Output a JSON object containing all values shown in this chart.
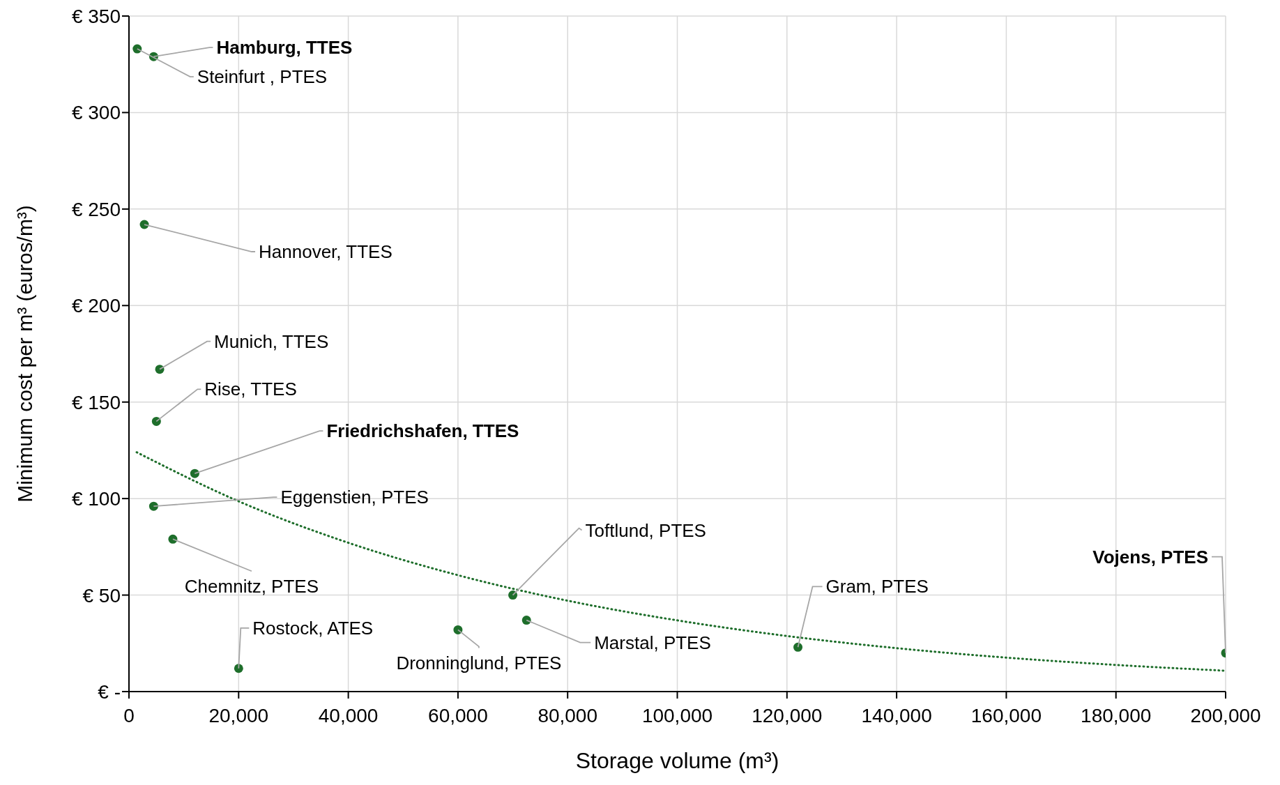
{
  "chart_data": {
    "type": "scatter",
    "xlabel": "Storage volume (m³)",
    "ylabel": "Minimum cost per m³ (euros/m³)",
    "xlim": [
      0,
      200000
    ],
    "xticks": [
      0,
      {
        "value": 20000,
        "label": "20,000"
      },
      {
        "value": 40000,
        "label": "40,000"
      },
      {
        "value": 60000,
        "label": "60,000"
      },
      {
        "value": 80000,
        "label": "80,000"
      },
      {
        "value": 100000,
        "label": "100,000"
      },
      {
        "value": 120000,
        "label": "120,000"
      },
      {
        "value": 140000,
        "label": "140,000"
      },
      {
        "value": 160000,
        "label": "160,000"
      },
      {
        "value": 180000,
        "label": "180,000"
      },
      {
        "value": 200000,
        "label": "200,000"
      }
    ],
    "ylim": [
      0,
      350
    ],
    "yticks": [
      {
        "value": 0,
        "label": "€ -"
      },
      {
        "value": 50,
        "label": "€ 50"
      },
      {
        "value": 100,
        "label": "€ 100"
      },
      {
        "value": 150,
        "label": "€ 150"
      },
      {
        "value": 200,
        "label": "€ 200"
      },
      {
        "value": 250,
        "label": "€ 250"
      },
      {
        "value": 300,
        "label": "€ 300"
      },
      {
        "value": 350,
        "label": "€ 350"
      }
    ],
    "grid": true,
    "marker": "circle",
    "series": [
      {
        "type": "scatter",
        "color": "#1e6e2b",
        "x": [
          4500,
          1500,
          2800,
          5600,
          5000,
          12000,
          4500,
          8000,
          20000,
          60000,
          70000,
          72500,
          122000,
          200000
        ],
        "values": [
          329,
          333,
          242,
          167,
          140,
          113,
          96,
          79,
          12,
          32,
          50,
          37,
          23,
          20
        ]
      },
      {
        "type": "line",
        "color": "#1e6e2b",
        "line_style": "dotted",
        "marker": "none",
        "x": [
          1400,
          20000,
          40000,
          60000,
          80000,
          100000,
          120000,
          140000,
          160000,
          180000,
          200000
        ],
        "values": [
          124,
          98.6,
          77.1,
          60.3,
          47.1,
          36.9,
          28.8,
          22.5,
          17.6,
          13.8,
          10.8
        ]
      }
    ],
    "annotations": [
      {
        "text": "Hamburg, TTES",
        "x": 4500,
        "y": 329
      },
      {
        "text": "Steinfurt , PTES",
        "x": 1500,
        "y": 333
      },
      {
        "text": "Hannover, TTES",
        "x": 2800,
        "y": 242
      },
      {
        "text": "Munich, TTES",
        "x": 5600,
        "y": 167
      },
      {
        "text": "Rise, TTES",
        "x": 5000,
        "y": 140
      },
      {
        "text": "Friedrichshafen, TTES",
        "x": 12000,
        "y": 113
      },
      {
        "text": "Eggenstien, PTES",
        "x": 4500,
        "y": 96
      },
      {
        "text": "Chemnitz, PTES",
        "x": 8000,
        "y": 79
      },
      {
        "text": "Rostock, ATES",
        "x": 20000,
        "y": 12
      },
      {
        "text": "Dronninglund, PTES",
        "x": 60000,
        "y": 32
      },
      {
        "text": "Toftlund, PTES",
        "x": 70000,
        "y": 50
      },
      {
        "text": "Marstal, PTES",
        "x": 72500,
        "y": 37
      },
      {
        "text": "Gram, PTES",
        "x": 122000,
        "y": 23
      },
      {
        "text": "Vojens, PTES",
        "x": 200000,
        "y": 20
      }
    ]
  }
}
